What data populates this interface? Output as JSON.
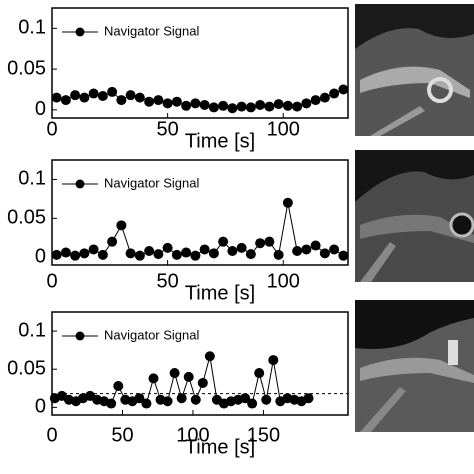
{
  "chart_data": [
    {
      "type": "line",
      "x_label": "Time [s]",
      "x": [
        2,
        6,
        10,
        14,
        18,
        22,
        26,
        30,
        34,
        38,
        42,
        46,
        50,
        54,
        58,
        62,
        66,
        70,
        74,
        78,
        82,
        86,
        90,
        94,
        98,
        102,
        106,
        110,
        114,
        118,
        122,
        126
      ],
      "series": [
        {
          "name": "Navigator Signal",
          "color": "#000000",
          "values": [
            0.015,
            0.012,
            0.018,
            0.015,
            0.02,
            0.017,
            0.022,
            0.012,
            0.018,
            0.015,
            0.01,
            0.012,
            0.008,
            0.01,
            0.005,
            0.008,
            0.006,
            0.003,
            0.005,
            0.002,
            0.004,
            0.003,
            0.006,
            0.004,
            0.007,
            0.005,
            0.004,
            0.008,
            0.012,
            0.015,
            0.02,
            0.025
          ]
        }
      ],
      "xlim": [
        0,
        128
      ],
      "ylim": [
        -0.01,
        0.125
      ],
      "xticks": [
        0,
        50,
        100
      ],
      "yticks": [
        0,
        0.05,
        0.1
      ]
    },
    {
      "type": "line",
      "x_label": "Time [s]",
      "x": [
        2,
        6,
        10,
        14,
        18,
        22,
        26,
        30,
        34,
        38,
        42,
        46,
        50,
        54,
        58,
        62,
        66,
        70,
        74,
        78,
        82,
        86,
        90,
        94,
        98,
        102,
        106,
        110,
        114,
        118,
        122,
        126
      ],
      "series": [
        {
          "name": "Navigator Signal",
          "color": "#000000",
          "values": [
            0.003,
            0.006,
            0.002,
            0.005,
            0.01,
            0.003,
            0.02,
            0.041,
            0.005,
            0.002,
            0.008,
            0.004,
            0.012,
            0.003,
            0.006,
            0.002,
            0.01,
            0.005,
            0.02,
            0.008,
            0.012,
            0.004,
            0.018,
            0.02,
            0.003,
            0.07,
            0.008,
            0.01,
            0.015,
            0.005,
            0.01,
            0.002
          ]
        }
      ],
      "xlim": [
        0,
        128
      ],
      "ylim": [
        -0.01,
        0.125
      ],
      "xticks": [
        0,
        50,
        100
      ],
      "yticks": [
        0,
        0.05,
        0.1
      ]
    },
    {
      "type": "line",
      "x_label": "Time [s]",
      "x": [
        2,
        7,
        12,
        17,
        22,
        27,
        32,
        37,
        42,
        47,
        52,
        57,
        62,
        67,
        72,
        77,
        82,
        87,
        92,
        97,
        102,
        107,
        112,
        117,
        122,
        127,
        132,
        137,
        142,
        147,
        152,
        157,
        162,
        167,
        172,
        177,
        182
      ],
      "series": [
        {
          "name": "Navigator Signal",
          "color": "#000000",
          "values": [
            0.012,
            0.015,
            0.01,
            0.008,
            0.012,
            0.015,
            0.01,
            0.008,
            0.005,
            0.028,
            0.01,
            0.008,
            0.012,
            0.005,
            0.038,
            0.01,
            0.008,
            0.045,
            0.012,
            0.04,
            0.01,
            0.032,
            0.067,
            0.01,
            0.005,
            0.008,
            0.01,
            0.012,
            0.005,
            0.045,
            0.01,
            0.062,
            0.008,
            0.012,
            0.01,
            0.008,
            0.012
          ]
        }
      ],
      "threshold": 0.018,
      "xlim": [
        0,
        210
      ],
      "ylim": [
        -0.01,
        0.125
      ],
      "xticks": [
        0,
        50,
        100,
        150
      ],
      "yticks": [
        0,
        0.05,
        0.1
      ]
    }
  ]
}
